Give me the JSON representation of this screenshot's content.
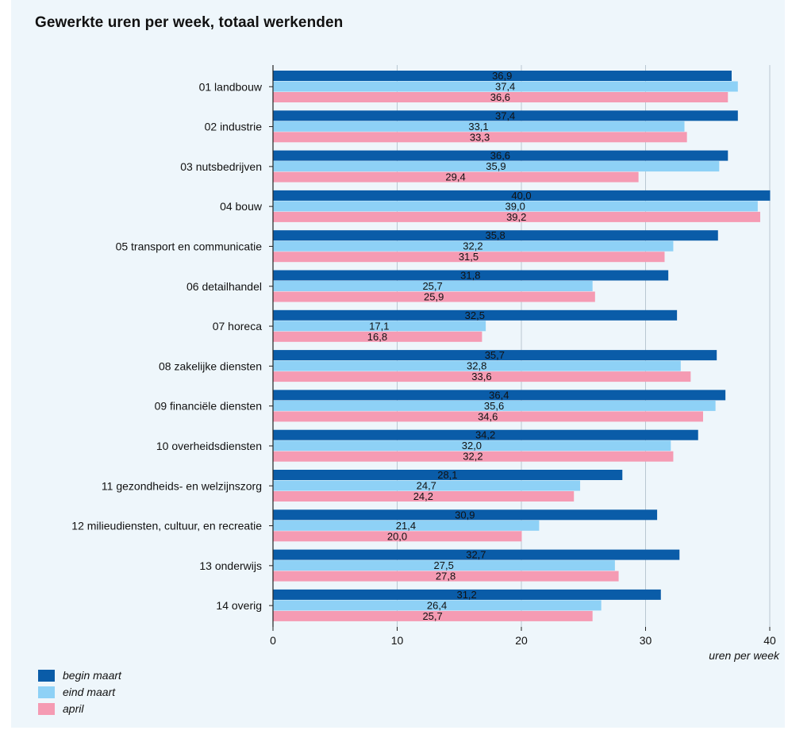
{
  "chart_data": {
    "type": "bar",
    "orientation": "horizontal",
    "title": "Gewerkte uren per week, totaal werkenden",
    "xlabel": "uren per week",
    "xlim": [
      0,
      40
    ],
    "xticks": [
      0,
      10,
      20,
      30,
      40
    ],
    "grid": true,
    "legend_position": "bottom-left",
    "categories": [
      "01 landbouw",
      "02 industrie",
      "03 nutsbedrijven",
      "04 bouw",
      "05 transport en communicatie",
      "06 detailhandel",
      "07 horeca",
      "08 zakelijke diensten",
      "09 financiële diensten",
      "10 overheidsdiensten",
      "11 gezondheids- en welzijnszorg",
      "12 milieudiensten, cultuur, en recreatie",
      "13 onderwijs",
      "14 overig"
    ],
    "series": [
      {
        "name": "begin maart",
        "color": "#0a5ca8",
        "values": [
          36.9,
          37.4,
          36.6,
          40.0,
          35.8,
          31.8,
          32.5,
          35.7,
          36.4,
          34.2,
          28.1,
          30.9,
          32.7,
          31.2
        ],
        "labels": [
          "36,9",
          "37,4",
          "36,6",
          "40,0",
          "35,8",
          "31,8",
          "32,5",
          "35,7",
          "36,4",
          "34,2",
          "28,1",
          "30,9",
          "32,7",
          "31,2"
        ]
      },
      {
        "name": "eind maart",
        "color": "#8ed1f6",
        "values": [
          37.4,
          33.1,
          35.9,
          39.0,
          32.2,
          25.7,
          17.1,
          32.8,
          35.6,
          32.0,
          24.7,
          21.4,
          27.5,
          26.4
        ],
        "labels": [
          "37,4",
          "33,1",
          "35,9",
          "39,0",
          "32,2",
          "25,7",
          "17,1",
          "32,8",
          "35,6",
          "32,0",
          "24,7",
          "21,4",
          "27,5",
          "26,4"
        ]
      },
      {
        "name": "april",
        "color": "#f59bb3",
        "values": [
          36.6,
          33.3,
          29.4,
          39.2,
          31.5,
          25.9,
          16.8,
          33.6,
          34.6,
          32.2,
          24.2,
          20.0,
          27.8,
          25.7
        ],
        "labels": [
          "36,6",
          "33,3",
          "29,4",
          "39,2",
          "31,5",
          "25,9",
          "16,8",
          "33,6",
          "34,6",
          "32,2",
          "24,2",
          "20,0",
          "27,8",
          "25,7"
        ]
      }
    ]
  }
}
